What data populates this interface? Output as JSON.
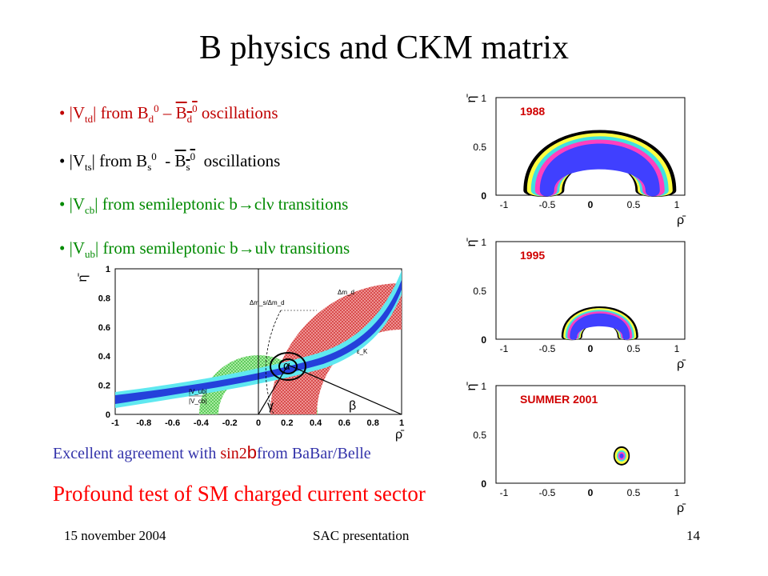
{
  "title": "B physics and CKM matrix",
  "bullets": [
    {
      "bullet": "•",
      "pre": "|V",
      "sub": "td",
      "mid": "| from B",
      "sub2": "d",
      "sup2": "0",
      "dash": " – ",
      "bbar": "B",
      "sub3": "d",
      "sup3": "0",
      "post": " oscillations",
      "color": "#c00000"
    },
    {
      "bullet": "•",
      "pre": "|V",
      "sub": "ts",
      "mid": "| from B",
      "sub2": "s",
      "sup2": "0",
      "dash": "  - ",
      "bbar": "B",
      "sub3": "s",
      "sup3": "0",
      "post": "  oscillations",
      "color": "#000000"
    },
    {
      "bullet": "•",
      "pre": "|V",
      "sub": "cb",
      "mid": "| from semileptonic b",
      "arrow": "→",
      "post": "cl",
      "nu": "ν",
      "tail": " transitions",
      "color": "#008a00"
    },
    {
      "bullet": "•",
      "pre": "|V",
      "sub": "ub",
      "mid": "| from semileptonic b",
      "arrow": "→",
      "post": "ul",
      "nu": "ν",
      "tail": " transitions",
      "color": "#008a00"
    }
  ],
  "agreement": {
    "pre": "Excellent agreement with ",
    "hl": "sin2",
    "beta": "b",
    "post": "from BaBar/Belle"
  },
  "conclusion": "Profound test of SM charged current sector",
  "footer": {
    "date": "15 november 2004",
    "event": "SAC presentation",
    "page": "14"
  },
  "main_plot": {
    "y_axis_label": "η̄",
    "x_axis_label": "ρ̄",
    "x_ticks": [
      "-1",
      "-0.8",
      "-0.6",
      "-0.4",
      "-0.2",
      "0",
      "0.2",
      "0.4",
      "0.6",
      "0.8",
      "1"
    ],
    "y_ticks": [
      "0",
      "0.2",
      "0.4",
      "0.6",
      "0.8",
      "1"
    ],
    "annotations": {
      "ms_md": "Δm_s/Δm_d",
      "md": "Δm_d",
      "eps": "ε_K",
      "vub_vcb_1": "|V_ub|",
      "vub_vcb_2": "|V_cb|",
      "alpha": "α",
      "beta": "β",
      "gamma": "γ"
    }
  },
  "panels": [
    {
      "label": "1988",
      "y_ticks": [
        "0",
        "0.5",
        "1"
      ],
      "x_ticks": [
        "-1",
        "-0.5",
        "0",
        "0.5",
        "1"
      ],
      "y_axis_label": "η̄",
      "x_axis_label": "ρ̄"
    },
    {
      "label": "1995",
      "y_ticks": [
        "0",
        "0.5",
        "1"
      ],
      "x_ticks": [
        "-1",
        "-0.5",
        "0",
        "0.5",
        "1"
      ],
      "y_axis_label": "η̄",
      "x_axis_label": "ρ̄"
    },
    {
      "label": "SUMMER 2001",
      "y_ticks": [
        "0",
        "0.5",
        "1"
      ],
      "x_ticks": [
        "-1",
        "-0.5",
        "0",
        "0.5",
        "1"
      ],
      "y_axis_label": "η̄",
      "x_axis_label": "ρ̄"
    }
  ],
  "colors": {
    "title": "#000000",
    "red_text": "#c00000",
    "green_text": "#008a00",
    "agreement": "#3333aa",
    "conclusion": "#ff0000",
    "panel_label": "#d00000"
  }
}
